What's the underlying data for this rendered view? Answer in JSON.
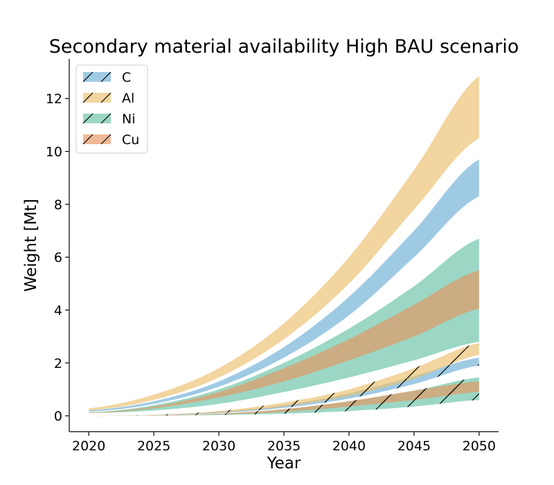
{
  "chart_data": {
    "type": "area",
    "title": "Secondary material availability High BAU scenario",
    "xlabel": "Year",
    "ylabel": "Weight [Mt]",
    "xlim": [
      2018.5,
      2051.5
    ],
    "ylim": [
      -0.6,
      13.5
    ],
    "xticks": [
      2020,
      2025,
      2030,
      2035,
      2040,
      2045,
      2050
    ],
    "yticks": [
      0,
      2,
      4,
      6,
      8,
      10,
      12
    ],
    "grid": false,
    "legend": "top-left",
    "x": [
      2020,
      2025,
      2030,
      2035,
      2040,
      2045,
      2050
    ],
    "series": [
      {
        "name": "C",
        "color": "#6baed6",
        "variant": "solid",
        "low": [
          0.15,
          0.45,
          1.1,
          2.2,
          3.8,
          6.0,
          8.3
        ],
        "high": [
          0.2,
          0.55,
          1.3,
          2.6,
          4.5,
          7.0,
          9.7
        ]
      },
      {
        "name": "Al",
        "color": "#ebbf6b",
        "variant": "solid",
        "low": [
          0.2,
          0.6,
          1.45,
          2.9,
          5.0,
          7.8,
          10.5
        ],
        "high": [
          0.28,
          0.8,
          1.8,
          3.5,
          6.0,
          9.3,
          12.85
        ]
      },
      {
        "name": "Ni",
        "color": "#66c2a5",
        "variant": "solid",
        "low": [
          0.1,
          0.2,
          0.45,
          0.9,
          1.45,
          2.1,
          2.8
        ],
        "high": [
          0.12,
          0.4,
          1.0,
          2.0,
          3.3,
          4.9,
          6.7
        ]
      },
      {
        "name": "Cu",
        "color": "#e6955f",
        "variant": "solid",
        "low": [
          0.1,
          0.28,
          0.7,
          1.3,
          2.1,
          3.0,
          4.05
        ],
        "high": [
          0.12,
          0.35,
          0.9,
          1.8,
          2.9,
          4.2,
          5.5
        ]
      },
      {
        "name": "C",
        "color": "#6baed6",
        "variant": "hatched",
        "low": [
          0.0,
          0.02,
          0.1,
          0.3,
          0.65,
          1.2,
          1.9
        ],
        "high": [
          0.0,
          0.03,
          0.15,
          0.4,
          0.85,
          1.5,
          2.2
        ]
      },
      {
        "name": "Al",
        "color": "#ebbf6b",
        "variant": "hatched",
        "low": [
          0.0,
          0.03,
          0.12,
          0.35,
          0.75,
          1.4,
          2.3
        ],
        "high": [
          0.0,
          0.04,
          0.18,
          0.5,
          1.0,
          1.8,
          2.75
        ]
      },
      {
        "name": "Ni",
        "color": "#66c2a5",
        "variant": "hatched",
        "low": [
          0.0,
          0.01,
          0.03,
          0.08,
          0.18,
          0.35,
          0.6
        ],
        "high": [
          0.0,
          0.02,
          0.08,
          0.25,
          0.55,
          0.95,
          1.45
        ]
      },
      {
        "name": "Cu",
        "color": "#e6955f",
        "variant": "hatched",
        "low": [
          0.0,
          0.01,
          0.05,
          0.15,
          0.35,
          0.6,
          0.9
        ],
        "high": [
          0.0,
          0.02,
          0.08,
          0.25,
          0.55,
          0.95,
          1.3
        ]
      }
    ]
  }
}
